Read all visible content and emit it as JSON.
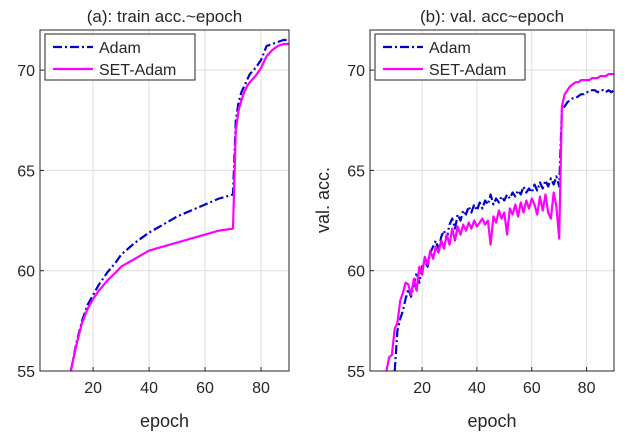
{
  "chart_data": [
    {
      "type": "line",
      "title": "(a): train acc.~epoch",
      "xlabel": "epoch",
      "ylabel": "",
      "xlim": [
        1,
        90
      ],
      "ylim": [
        55,
        72
      ],
      "xticks": [
        20,
        40,
        60,
        80
      ],
      "yticks": [
        55,
        60,
        65,
        70
      ],
      "grid": true,
      "legend_position": "top-left",
      "series": [
        {
          "name": "Adam",
          "color": "#0000cc",
          "dash": "dash-dot",
          "x": [
            12,
            14,
            16,
            18,
            20,
            22,
            25,
            28,
            30,
            35,
            40,
            45,
            50,
            55,
            60,
            65,
            70,
            71,
            72,
            73,
            74,
            75,
            76,
            78,
            80,
            82,
            84,
            86,
            88,
            90
          ],
          "y": [
            55.0,
            56.4,
            57.5,
            58.3,
            58.8,
            59.3,
            59.9,
            60.4,
            60.8,
            61.4,
            61.9,
            62.3,
            62.7,
            63.0,
            63.3,
            63.6,
            63.8,
            67.5,
            68.4,
            68.9,
            69.2,
            69.5,
            69.8,
            70.1,
            70.5,
            71.2,
            71.3,
            71.4,
            71.5,
            71.5
          ]
        },
        {
          "name": "SET-Adam",
          "color": "#ff00ff",
          "dash": "solid",
          "x": [
            12,
            14,
            16,
            18,
            20,
            22,
            25,
            28,
            30,
            35,
            40,
            45,
            50,
            55,
            60,
            65,
            70,
            71,
            72,
            73,
            74,
            75,
            76,
            78,
            80,
            82,
            84,
            86,
            88,
            90
          ],
          "y": [
            55.0,
            56.3,
            57.4,
            58.1,
            58.6,
            59.0,
            59.5,
            59.9,
            60.2,
            60.6,
            61.0,
            61.2,
            61.4,
            61.6,
            61.8,
            62.0,
            62.1,
            67.0,
            68.0,
            68.5,
            68.9,
            69.2,
            69.4,
            69.7,
            70.1,
            70.7,
            71.0,
            71.2,
            71.3,
            71.3
          ]
        }
      ]
    },
    {
      "type": "line",
      "title": "(b): val. acc~epoch",
      "xlabel": "epoch",
      "ylabel": "val. acc.",
      "xlim": [
        1,
        90
      ],
      "ylim": [
        55,
        72
      ],
      "xticks": [
        20,
        40,
        60,
        80
      ],
      "yticks": [
        55,
        60,
        65,
        70
      ],
      "grid": true,
      "legend_position": "top-left",
      "series": [
        {
          "name": "Adam",
          "color": "#0000cc",
          "dash": "dash-dot",
          "x": [
            10,
            11,
            12,
            13,
            14,
            15,
            16,
            17,
            18,
            19,
            20,
            21,
            22,
            23,
            24,
            25,
            26,
            27,
            28,
            29,
            30,
            31,
            32,
            33,
            34,
            35,
            36,
            37,
            38,
            39,
            40,
            41,
            42,
            43,
            44,
            45,
            46,
            47,
            48,
            49,
            50,
            51,
            52,
            53,
            54,
            55,
            56,
            57,
            58,
            59,
            60,
            61,
            62,
            63,
            64,
            65,
            66,
            67,
            68,
            69,
            70,
            71,
            72,
            73,
            74,
            75,
            76,
            77,
            78,
            79,
            80,
            81,
            82,
            83,
            84,
            85,
            86,
            87,
            88,
            89,
            90
          ],
          "y": [
            55.0,
            57.0,
            57.6,
            58.0,
            58.6,
            59.1,
            58.7,
            59.3,
            59.9,
            59.4,
            60.2,
            60.5,
            60.2,
            60.9,
            61.2,
            61.5,
            61.0,
            61.7,
            62.0,
            61.6,
            62.3,
            62.6,
            62.1,
            62.8,
            62.5,
            63.0,
            62.8,
            63.2,
            62.9,
            63.3,
            63.0,
            63.4,
            63.1,
            63.5,
            63.3,
            63.8,
            63.3,
            63.6,
            63.4,
            63.7,
            63.5,
            63.8,
            63.6,
            63.9,
            63.7,
            64.0,
            63.8,
            64.2,
            63.9,
            64.1,
            63.9,
            64.3,
            64.0,
            64.4,
            64.1,
            64.5,
            64.2,
            64.6,
            64.3,
            64.7,
            64.2,
            68.0,
            68.2,
            68.4,
            68.5,
            68.6,
            68.6,
            68.7,
            68.8,
            68.8,
            68.9,
            68.9,
            69.0,
            69.0,
            68.9,
            69.0,
            69.0,
            68.9,
            69.0,
            68.9,
            69.0
          ]
        },
        {
          "name": "SET-Adam",
          "color": "#ff00ff",
          "dash": "solid",
          "x": [
            7,
            8,
            9,
            10,
            11,
            12,
            13,
            14,
            15,
            16,
            17,
            18,
            19,
            20,
            21,
            22,
            23,
            24,
            25,
            26,
            27,
            28,
            29,
            30,
            31,
            32,
            33,
            34,
            35,
            36,
            37,
            38,
            39,
            40,
            41,
            42,
            43,
            44,
            45,
            46,
            47,
            48,
            49,
            50,
            51,
            52,
            53,
            54,
            55,
            56,
            57,
            58,
            59,
            60,
            61,
            62,
            63,
            64,
            65,
            66,
            67,
            68,
            69,
            70,
            71,
            72,
            73,
            74,
            75,
            76,
            77,
            78,
            79,
            80,
            81,
            82,
            83,
            84,
            85,
            86,
            87,
            88,
            89,
            90
          ],
          "y": [
            55.0,
            55.7,
            55.8,
            57.1,
            57.4,
            58.5,
            58.9,
            59.4,
            59.3,
            58.8,
            59.6,
            59.0,
            60.2,
            59.8,
            60.7,
            60.3,
            61.0,
            60.6,
            61.2,
            60.9,
            61.5,
            61.1,
            61.8,
            61.3,
            62.1,
            61.5,
            62.2,
            61.8,
            62.3,
            62.0,
            62.4,
            62.1,
            62.5,
            62.2,
            62.4,
            62.6,
            62.3,
            62.5,
            61.3,
            62.7,
            62.4,
            63.0,
            62.6,
            62.9,
            61.8,
            63.1,
            62.8,
            63.3,
            62.7,
            63.4,
            62.9,
            63.5,
            63.1,
            63.6,
            63.3,
            62.8,
            63.7,
            63.0,
            63.8,
            62.9,
            62.6,
            63.9,
            63.2,
            61.6,
            68.2,
            68.8,
            69.0,
            69.2,
            69.3,
            69.4,
            69.4,
            69.5,
            69.5,
            69.5,
            69.5,
            69.6,
            69.6,
            69.6,
            69.7,
            69.7,
            69.7,
            69.8,
            69.8,
            69.8
          ]
        }
      ]
    }
  ]
}
